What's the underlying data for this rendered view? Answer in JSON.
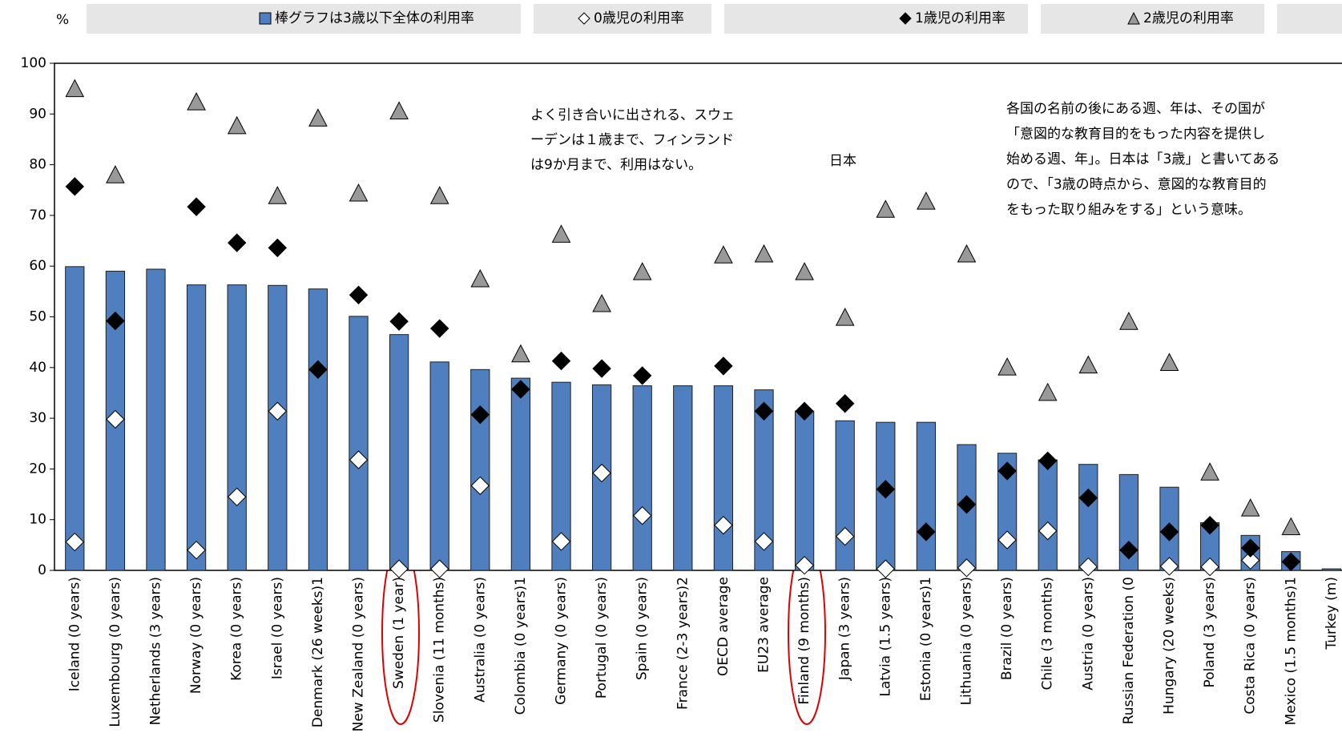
{
  "chart_data": {
    "type": "bar",
    "ylabel": "%",
    "categories": [
      "Iceland (0 years)",
      "Luxembourg (0 years)",
      "Netherlands (3 years)",
      "Norway (0 years)",
      "Korea (0 years)",
      "Israel (0 years)",
      "Denmark (26 weeks)1",
      "New Zealand (0 years)",
      "Sweden (1 year)",
      "Slovenia (11 months)",
      "Australia (0 years)",
      "Colombia (0 years)1",
      "Germany (0 years)",
      "Portugal (0 years)",
      "Spain (0 years)",
      "France (2-3 years)2",
      "OECD average",
      "EU23 average",
      "Finland (9 months)",
      "Japan (3 years)",
      "Latvia (1.5 years)",
      "Estonia (0 years)1",
      "Lithuania (0 years)",
      "Brazil (0 years)",
      "Chile (3 months)",
      "Austria (0 years)",
      "Russian Federation (0",
      "Hungary (20 weeks)",
      "Poland (3 years)",
      "Costa Rica (0 years)",
      "Mexico (1.5 months)1",
      "Turkey (m)"
    ],
    "series": [
      {
        "name": "棒グラフは3歳以下全体の利用率",
        "marker": "bar",
        "color": "#4f7fbf",
        "values": [
          59.9,
          59,
          59.4,
          56.3,
          56.3,
          56.2,
          55.5,
          50.1,
          46.5,
          41.1,
          39.6,
          37.9,
          37.1,
          36.6,
          36.4,
          36.4,
          36.4,
          35.6,
          31.4,
          29.5,
          29.2,
          29.2,
          24.8,
          23.1,
          21.8,
          20.9,
          18.9,
          16.4,
          9.4,
          6.9,
          3.7,
          0.3
        ]
      },
      {
        "name": "0歳児の利用率",
        "marker": "diamond",
        "color": "#ffffff",
        "values": [
          5.6,
          29.8,
          null,
          4,
          14.5,
          31.4,
          null,
          21.8,
          0.3,
          0.3,
          16.7,
          null,
          5.7,
          19.2,
          10.8,
          null,
          8.9,
          5.7,
          1,
          6.7,
          0.3,
          null,
          0.5,
          6,
          7.8,
          0.7,
          null,
          0.8,
          0.7,
          2,
          null,
          null
        ]
      },
      {
        "name": "1歳児の利用率",
        "marker": "diamond",
        "color": "#000000",
        "values": [
          75.7,
          49.2,
          null,
          71.7,
          64.6,
          63.6,
          39.6,
          54.3,
          49.1,
          47.7,
          30.7,
          35.7,
          41.3,
          39.8,
          38.4,
          null,
          40.3,
          31.4,
          31.4,
          32.9,
          16,
          7.6,
          13,
          19.6,
          21.6,
          14.3,
          4,
          7.6,
          8.9,
          4.4,
          1.7,
          null
        ]
      },
      {
        "name": "2歳児の利用率",
        "marker": "triangle",
        "color": "#999999",
        "values": [
          95,
          78,
          null,
          92.4,
          87.7,
          73.9,
          89.2,
          74.4,
          90.6,
          73.9,
          57.5,
          42.7,
          66.3,
          52.6,
          58.9,
          null,
          62.2,
          62.4,
          58.9,
          49.9,
          71.2,
          72.8,
          62.4,
          40.1,
          35.1,
          40.5,
          49.1,
          41,
          19.4,
          12.3,
          8.6,
          null
        ]
      }
    ],
    "ylim": [
      0,
      100
    ],
    "yticks": [
      0,
      10,
      20,
      30,
      40,
      50,
      60,
      70,
      80,
      90,
      100
    ],
    "annotations": [
      {
        "lines": [
          "よく引き合いに出される、スウェ",
          "ーデンは１歳まで、フィンランド",
          "は9か月まで、利用はない。"
        ]
      },
      {
        "lines": [
          "各国の名前の後にある週、年は、その国が",
          "「意図的な教育目的をもった内容を提供し",
          "始める週、年」。日本は「3歳」と書いてある",
          "ので、「3歳の時点から、意図的な教育目的",
          "をもった取り組みをする」という意味。"
        ]
      },
      {
        "lines": [
          "日本"
        ]
      }
    ]
  }
}
